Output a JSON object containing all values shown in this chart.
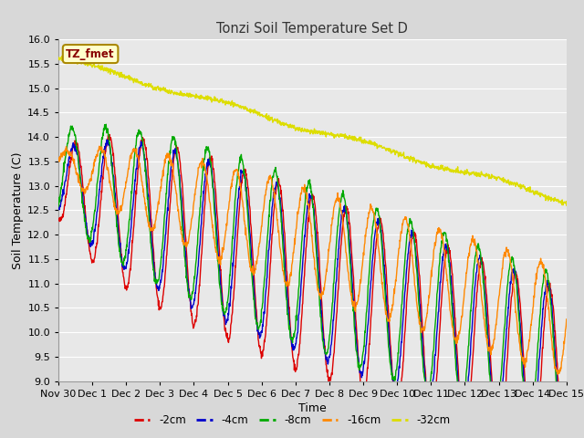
{
  "title": "Tonzi Soil Temperature Set D",
  "xlabel": "Time",
  "ylabel": "Soil Temperature (C)",
  "ylim": [
    9.0,
    16.0
  ],
  "legend_label": "TZ_fmet",
  "series_labels": [
    "-2cm",
    "-4cm",
    "-8cm",
    "-16cm",
    "-32cm"
  ],
  "series_colors": [
    "#dd0000",
    "#0000cc",
    "#00aa00",
    "#ff8800",
    "#dddd00"
  ],
  "bg_color": "#d8d8d8",
  "plot_bg_color": "#e8e8e8",
  "grid_color": "#ffffff",
  "legend_box_color": "#ffffcc",
  "legend_box_edge": "#aa8800",
  "n_points": 1440,
  "tick_positions": [
    0,
    1,
    2,
    3,
    4,
    5,
    6,
    7,
    8,
    9,
    10,
    11,
    12,
    13,
    14,
    15
  ],
  "tick_labels": [
    "Nov 30",
    "Dec 1",
    "Dec 2",
    "Dec 3",
    "Dec 4",
    "Dec 5",
    "Dec 6",
    "Dec 7",
    "Dec 8",
    "Dec 9",
    "Dec 10",
    "Dec 11",
    "Dec 12",
    "Dec 13",
    "Dec 14",
    "Dec 15"
  ],
  "yticks": [
    9.0,
    9.5,
    10.0,
    10.5,
    11.0,
    11.5,
    12.0,
    12.5,
    13.0,
    13.5,
    14.0,
    14.5,
    15.0,
    15.5,
    16.0
  ]
}
